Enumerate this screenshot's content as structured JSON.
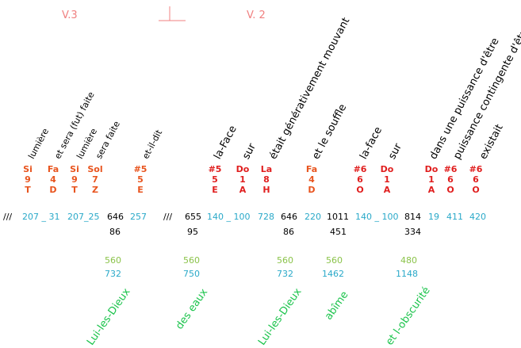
{
  "headers": {
    "v3": "V.3",
    "v2": "V. 2"
  },
  "words": [
    "lumière",
    "et sera (fut) faite",
    "lumière",
    "sera faite",
    "et-il-dit",
    "la-Face",
    "sur",
    "était générativement mouvant",
    "et le souffle",
    "la-face",
    "sur",
    "dans une puissance d'être",
    "puissance contingente d'être",
    "existait"
  ],
  "notes": [
    {
      "n": "Si",
      "d": "9",
      "l": "T",
      "c": "orange"
    },
    {
      "n": "Fa",
      "d": "4",
      "l": "D",
      "c": "orange"
    },
    {
      "n": "Si",
      "d": "9",
      "l": "T",
      "c": "orange"
    },
    {
      "n": "Sol",
      "d": "7",
      "l": "Z",
      "c": "orange"
    },
    {
      "n": "#5",
      "d": "5",
      "l": "E",
      "c": "orange"
    },
    {
      "n": "#5",
      "d": "5",
      "l": "E",
      "c": "red"
    },
    {
      "n": "Do",
      "d": "1",
      "l": "A",
      "c": "red"
    },
    {
      "n": "La",
      "d": "8",
      "l": "H",
      "c": "red"
    },
    {
      "n": "Fa",
      "d": "4",
      "l": "D",
      "c": "orange"
    },
    {
      "n": "#6",
      "d": "6",
      "l": "O",
      "c": "red"
    },
    {
      "n": "Do",
      "d": "1",
      "l": "A",
      "c": "red"
    },
    {
      "n": "Do",
      "d": "1",
      "l": "A",
      "c": "red"
    },
    {
      "n": "#6",
      "d": "6",
      "l": "O",
      "c": "red"
    },
    {
      "n": "#6",
      "d": "6",
      "l": "O",
      "c": "red"
    }
  ],
  "row1": [
    {
      "t": "///",
      "c": "blk"
    },
    {
      "t": "207 _ 31",
      "c": "blue"
    },
    {
      "t": "207_25",
      "c": "blue"
    },
    {
      "t": "646",
      "c": "blk"
    },
    {
      "t": "257",
      "c": "blue"
    },
    {
      "t": "///",
      "c": "blk"
    },
    {
      "t": "655",
      "c": "blk"
    },
    {
      "t": "140 _ 100",
      "c": "blue"
    },
    {
      "t": "728",
      "c": "blue"
    },
    {
      "t": "646",
      "c": "blk"
    },
    {
      "t": "220",
      "c": "blue"
    },
    {
      "t": "1011",
      "c": "blk"
    },
    {
      "t": "140 _ 100",
      "c": "blue"
    },
    {
      "t": "814",
      "c": "blk"
    },
    {
      "t": "19",
      "c": "blue"
    },
    {
      "t": "411",
      "c": "blue"
    },
    {
      "t": "420",
      "c": "blue"
    }
  ],
  "row2": [
    "86",
    "95",
    "86",
    "451",
    "334"
  ],
  "sums": [
    {
      "a": "560",
      "b": "732"
    },
    {
      "a": "560",
      "b": "750"
    },
    {
      "a": "560",
      "b": "732"
    },
    {
      "a": "560",
      "b": "1462"
    },
    {
      "a": "480",
      "b": "1148"
    }
  ],
  "greens": [
    "Lui-les-Dieux",
    "des eaux",
    "Lui-les-Dieux",
    "abîme",
    "et l-obscurité"
  ]
}
